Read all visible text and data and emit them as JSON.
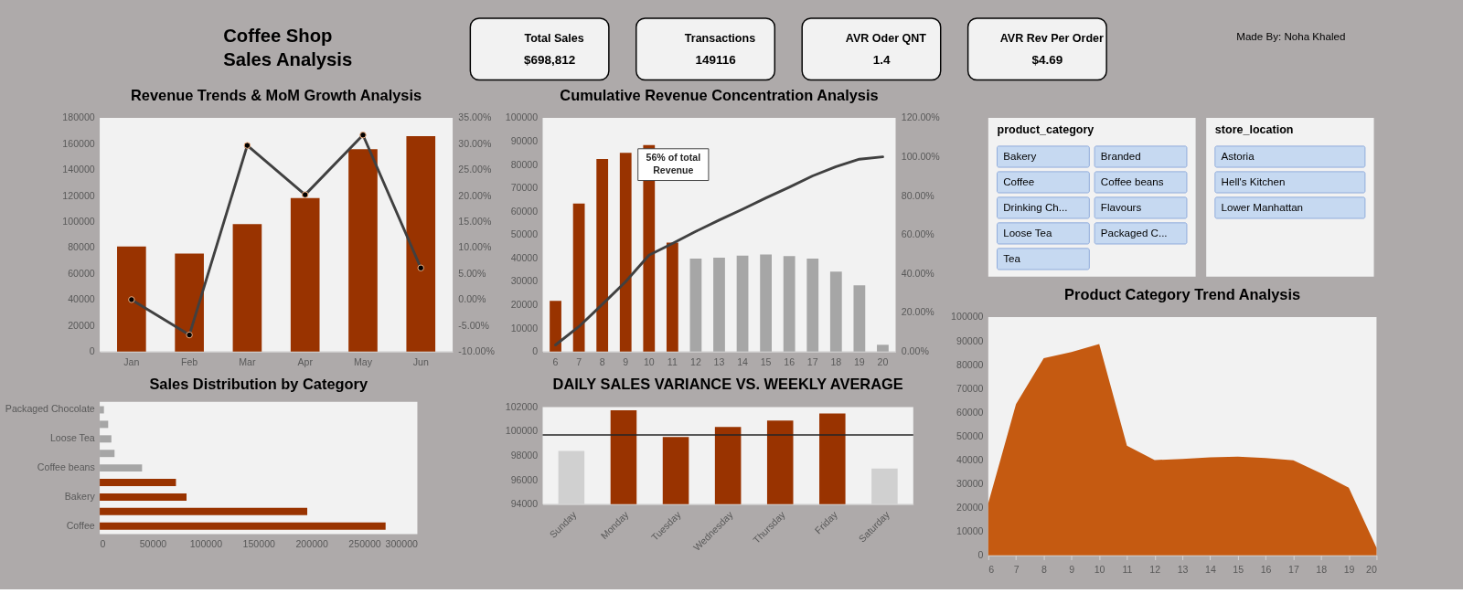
{
  "chart_data": [
    {
      "type": "other",
      "title": "Coffee Shop Sales Analysis",
      "categories": [
        "Total Sales",
        "Transactions",
        "AVR Oder QNT",
        "AVR Rev Per Order"
      ],
      "values": [
        698812,
        149116,
        1.4,
        4.69
      ],
      "value_labels": [
        "$698,812",
        "149116",
        "1.4",
        "$4.69"
      ],
      "annotations": [
        "Made By: Noha Khaled"
      ]
    },
    {
      "type": "bar",
      "title": "Revenue Trends & MoM Growth Analysis",
      "categories": [
        "Jan",
        "Feb",
        "Mar",
        "Apr",
        "May",
        "Jun"
      ],
      "series": [
        {
          "type": "bar",
          "color": "#993300",
          "values": [
            81000,
            75400,
            98100,
            118300,
            155900,
            166000
          ]
        },
        {
          "type": "line",
          "axis": "y2",
          "color": "#404040",
          "marker": "circle",
          "values": [
            0,
            -6.8,
            29.7,
            20.2,
            31.7,
            6.1
          ]
        }
      ],
      "ylim": [
        0,
        180000
      ],
      "yticks": [
        0,
        20000,
        40000,
        60000,
        80000,
        100000,
        120000,
        140000,
        160000,
        180000
      ],
      "y2lim": [
        -10,
        35
      ],
      "y2ticks": [
        {
          "value": -10,
          "label": "-10.00%"
        },
        {
          "value": -5,
          "label": "-5.00%"
        },
        {
          "value": 0,
          "label": "0.00%"
        },
        {
          "value": 5,
          "label": "5.00%"
        },
        {
          "value": 10,
          "label": "10.00%"
        },
        {
          "value": 15,
          "label": "15.00%"
        },
        {
          "value": 20,
          "label": "20.00%"
        },
        {
          "value": 25,
          "label": "25.00%"
        },
        {
          "value": 30,
          "label": "30.00%"
        },
        {
          "value": 35,
          "label": "35.00%"
        }
      ]
    },
    {
      "type": "bar",
      "title": "Cumulative Revenue Concentration Analysis",
      "categories": [
        "6",
        "7",
        "8",
        "9",
        "10",
        "11",
        "12",
        "13",
        "14",
        "15",
        "16",
        "17",
        "18",
        "19",
        "20"
      ],
      "series": [
        {
          "type": "bar",
          "colors": [
            "#993300",
            "#993300",
            "#993300",
            "#993300",
            "#993300",
            "#993300",
            "#a6a6a6",
            "#a6a6a6",
            "#a6a6a6",
            "#a6a6a6",
            "#a6a6a6",
            "#a6a6a6",
            "#a6a6a6",
            "#a6a6a6",
            "#a6a6a6"
          ],
          "values": [
            21700,
            63300,
            82400,
            85000,
            88400,
            46600,
            39800,
            40200,
            41100,
            41500,
            40900,
            39800,
            34200,
            28300,
            2900
          ]
        },
        {
          "type": "line",
          "axis": "y2",
          "color": "#404040",
          "values": [
            3.4,
            12.8,
            24.2,
            35.9,
            49.5,
            55.5,
            61.7,
            67.5,
            73.1,
            78.9,
            84.4,
            90.2,
            95,
            98.8,
            100
          ]
        }
      ],
      "ylim": [
        0,
        100000
      ],
      "yticks": [
        0,
        10000,
        20000,
        30000,
        40000,
        50000,
        60000,
        70000,
        80000,
        90000,
        100000
      ],
      "y2lim": [
        0,
        120
      ],
      "y2ticks": [
        {
          "value": 0,
          "label": "0.00%"
        },
        {
          "value": 20,
          "label": "20.00%"
        },
        {
          "value": 40,
          "label": "40.00%"
        },
        {
          "value": 60,
          "label": "60.00%"
        },
        {
          "value": 80,
          "label": "80.00%"
        },
        {
          "value": 100,
          "label": "100.00%"
        },
        {
          "value": 120,
          "label": "120.00%"
        }
      ],
      "annotations": [
        "56% of total Revenue"
      ]
    },
    {
      "type": "other",
      "title": "product_category",
      "categories": [
        "Bakery",
        "Branded",
        "Coffee",
        "Coffee beans",
        "Drinking Ch...",
        "Flavours",
        "Loose Tea",
        "Packaged C...",
        "Tea"
      ]
    },
    {
      "type": "other",
      "title": "store_location",
      "categories": [
        "Astoria",
        "Hell's Kitchen",
        "Lower Manhattan"
      ]
    },
    {
      "type": "bar",
      "orientation": "horizontal",
      "title": "Sales Distribution by Category",
      "categories": [
        "Packaged Chocolate",
        null,
        "Loose Tea",
        null,
        "Coffee beans",
        null,
        "Bakery",
        null,
        "Coffee"
      ],
      "values": [
        4000,
        8000,
        11000,
        14000,
        40000,
        72000,
        82000,
        196000,
        270000
      ],
      "colors": [
        "#a6a6a6",
        "#a6a6a6",
        "#a6a6a6",
        "#a6a6a6",
        "#a6a6a6",
        "#993300",
        "#993300",
        "#993300",
        "#993300"
      ],
      "xlim": [
        0,
        300000
      ],
      "xticks": [
        0,
        50000,
        100000,
        150000,
        200000,
        250000,
        300000
      ]
    },
    {
      "type": "bar",
      "title": "DAILY SALES VARIANCE VS. WEEKLY AVERAGE",
      "categories": [
        "Sunday",
        "Monday",
        "Tuesday",
        "Wednesday",
        "Thursday",
        "Friday",
        "Saturday"
      ],
      "values": [
        98390,
        101740,
        99530,
        100370,
        100890,
        101480,
        96930
      ],
      "colors": [
        "#d0d0d0",
        "#993300",
        "#993300",
        "#993300",
        "#993300",
        "#993300",
        "#d0d0d0"
      ],
      "ylim": [
        94000,
        102000
      ],
      "yticks": [
        94000,
        96000,
        98000,
        100000,
        102000
      ],
      "ref_lines": [
        {
          "axis": "y",
          "value": 99700,
          "color": "#262626"
        }
      ]
    },
    {
      "type": "area",
      "title": "Product Category Trend Analysis",
      "x": [
        6,
        7,
        8,
        9,
        10,
        11,
        12,
        13,
        14,
        15,
        16,
        17,
        18,
        19,
        20
      ],
      "values": [
        21800,
        63500,
        82800,
        85400,
        88700,
        46000,
        40000,
        40500,
        41100,
        41400,
        40800,
        39900,
        34400,
        28400,
        3100
      ],
      "color": "#c55a11",
      "xlim": [
        6,
        20
      ],
      "xticks": [
        6,
        7,
        8,
        9,
        10,
        11,
        12,
        13,
        14,
        15,
        16,
        17,
        18,
        19,
        20
      ],
      "ylim": [
        0,
        100000
      ],
      "yticks": [
        0,
        10000,
        20000,
        30000,
        40000,
        50000,
        60000,
        70000,
        80000,
        90000,
        100000
      ]
    }
  ]
}
